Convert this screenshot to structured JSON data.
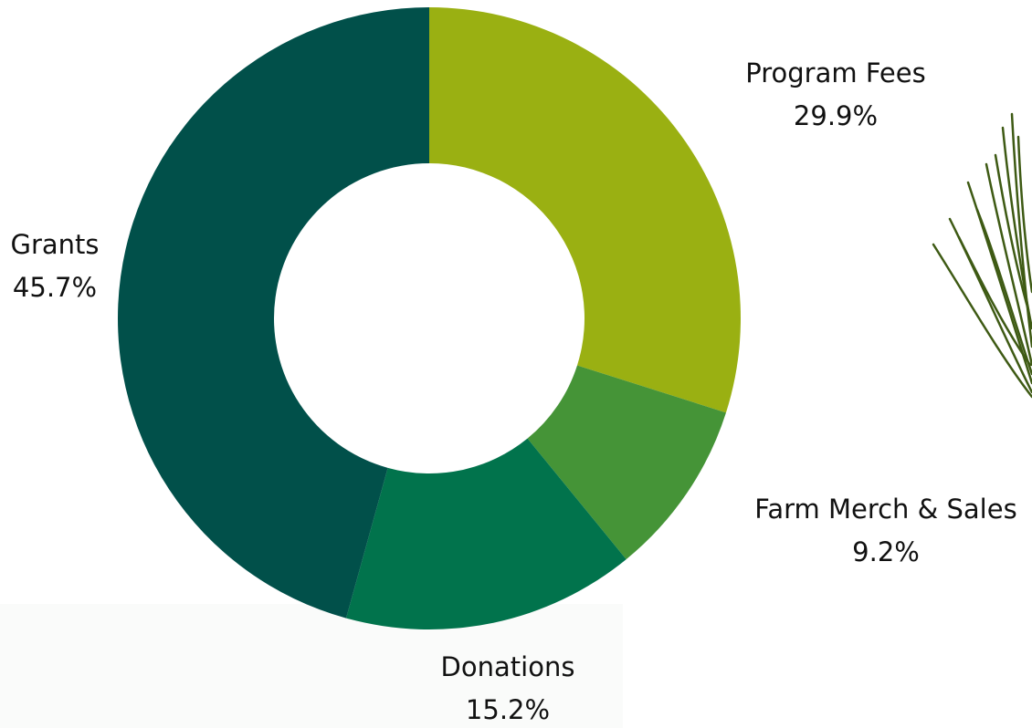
{
  "chart_data": {
    "type": "donut",
    "categories": [
      "Program Fees",
      "Farm Merch & Sales",
      "Donations",
      "Grants"
    ],
    "values": [
      29.9,
      9.2,
      15.2,
      45.7
    ],
    "value_labels": [
      "29.9%",
      "9.2%",
      "15.2%",
      "45.7%"
    ],
    "colors": [
      "#9ab012",
      "#459437",
      "#01734c",
      "#01504a"
    ]
  }
}
